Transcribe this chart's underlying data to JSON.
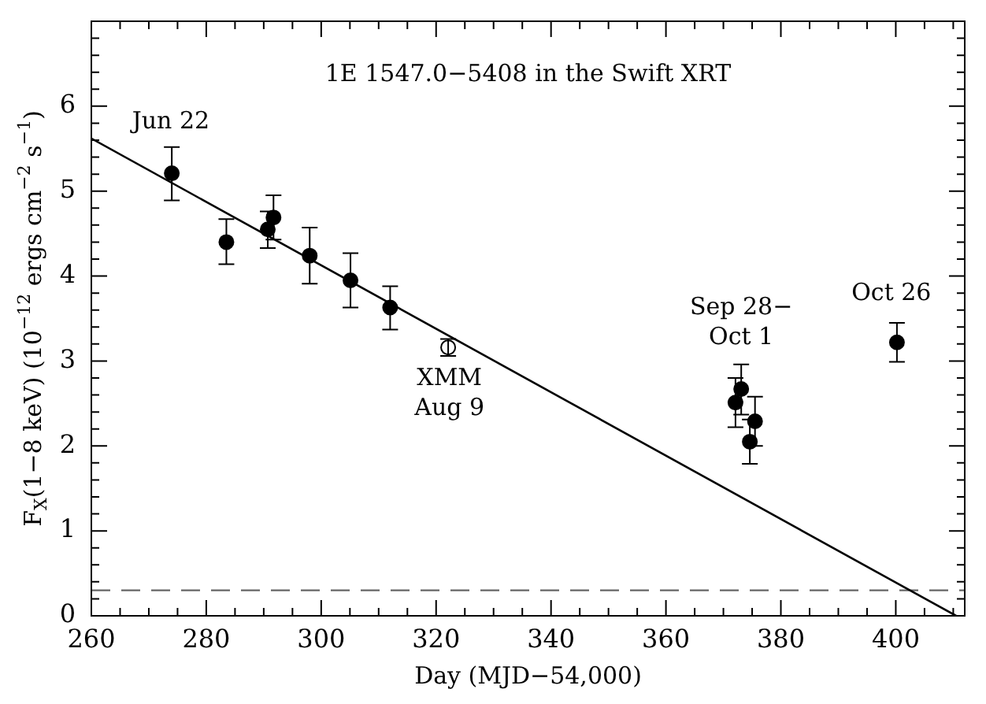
{
  "chart_data": {
    "type": "scatter",
    "title": "1E 1547.0−5408 in the Swift XRT",
    "xlabel": "Day (MJD−54,000)",
    "ylabel": "F$_{X}$(1−8 keV) (10$^{−12}$ ergs cm$^{−2}$ s$^{−1}$)",
    "xlim": [
      260,
      412
    ],
    "ylim": [
      0,
      7
    ],
    "xticks": [
      260,
      {
        "value": 265,
        "label": null
      },
      {
        "value": 270,
        "label": null
      },
      {
        "value": 275,
        "label": null
      },
      280,
      {
        "value": 285,
        "label": null
      },
      {
        "value": 290,
        "label": null
      },
      {
        "value": 295,
        "label": null
      },
      300,
      {
        "value": 305,
        "label": null
      },
      {
        "value": 310,
        "label": null
      },
      {
        "value": 315,
        "label": null
      },
      320,
      {
        "value": 325,
        "label": null
      },
      {
        "value": 330,
        "label": null
      },
      {
        "value": 335,
        "label": null
      },
      340,
      {
        "value": 345,
        "label": null
      },
      {
        "value": 350,
        "label": null
      },
      {
        "value": 355,
        "label": null
      },
      360,
      {
        "value": 365,
        "label": null
      },
      {
        "value": 370,
        "label": null
      },
      {
        "value": 375,
        "label": null
      },
      380,
      {
        "value": 385,
        "label": null
      },
      {
        "value": 390,
        "label": null
      },
      {
        "value": 395,
        "label": null
      },
      400,
      {
        "value": 405,
        "label": null
      },
      {
        "value": 410,
        "label": null
      }
    ],
    "yticks": [
      0,
      {
        "value": 0.2,
        "label": null
      },
      {
        "value": 0.4,
        "label": null
      },
      {
        "value": 0.6,
        "label": null
      },
      {
        "value": 0.8,
        "label": null
      },
      1,
      {
        "value": 1.2,
        "label": null
      },
      {
        "value": 1.4,
        "label": null
      },
      {
        "value": 1.6,
        "label": null
      },
      {
        "value": 1.8,
        "label": null
      },
      2,
      {
        "value": 2.2,
        "label": null
      },
      {
        "value": 2.4,
        "label": null
      },
      {
        "value": 2.6,
        "label": null
      },
      {
        "value": 2.8,
        "label": null
      },
      3,
      {
        "value": 3.2,
        "label": null
      },
      {
        "value": 3.4,
        "label": null
      },
      {
        "value": 3.6,
        "label": null
      },
      {
        "value": 3.8,
        "label": null
      },
      4,
      {
        "value": 4.2,
        "label": null
      },
      {
        "value": 4.4,
        "label": null
      },
      {
        "value": 4.6,
        "label": null
      },
      {
        "value": 4.8,
        "label": null
      },
      5,
      {
        "value": 5.2,
        "label": null
      },
      {
        "value": 5.4,
        "label": null
      },
      {
        "value": 5.6,
        "label": null
      },
      {
        "value": 5.8,
        "label": null
      },
      6,
      {
        "value": 6.2,
        "label": null
      },
      {
        "value": 6.4,
        "label": null
      },
      {
        "value": 6.6,
        "label": null
      },
      {
        "value": 6.8,
        "label": null
      },
      {
        "value": 7,
        "label": null
      }
    ],
    "grid": false,
    "legend": false,
    "series": [
      {
        "marker": "circle",
        "color": "#000000",
        "x": [
          274.0,
          283.5,
          290.7,
          291.7,
          298.0,
          305.1,
          312.0,
          372.1,
          373.1,
          374.6,
          375.5,
          400.2
        ],
        "values": [
          5.21,
          4.4,
          4.55,
          4.69,
          4.24,
          3.95,
          3.63,
          2.51,
          2.67,
          2.05,
          2.29,
          3.22
        ],
        "errors": [
          [
            4.89,
            5.52
          ],
          [
            4.14,
            4.67
          ],
          [
            4.33,
            4.76
          ],
          [
            4.43,
            4.95
          ],
          [
            3.91,
            4.57
          ],
          [
            3.63,
            4.27
          ],
          [
            3.37,
            3.88
          ],
          [
            2.22,
            2.8
          ],
          [
            2.37,
            2.96
          ],
          [
            1.79,
            2.31
          ],
          [
            2.0,
            2.58
          ],
          [
            2.99,
            3.45
          ]
        ]
      },
      {
        "marker": "circle",
        "color": "#ffffff",
        "x": [
          322.1
        ],
        "values": [
          3.16
        ],
        "errors": [
          [
            3.06,
            3.26
          ]
        ]
      },
      {
        "type": "line",
        "marker": "none",
        "line_style": "solid",
        "color": "#000000",
        "x": [
          260,
          410.5
        ],
        "values": [
          5.62,
          0
        ]
      }
    ],
    "ref_lines": [
      {
        "axis": "y",
        "value": 0.3,
        "color": "#666666",
        "line_style": "dashed"
      }
    ],
    "annotations": [
      "Jun 22",
      "XMM\nAug 9",
      "Sep 28−\nOct 1",
      "Oct 26"
    ]
  }
}
